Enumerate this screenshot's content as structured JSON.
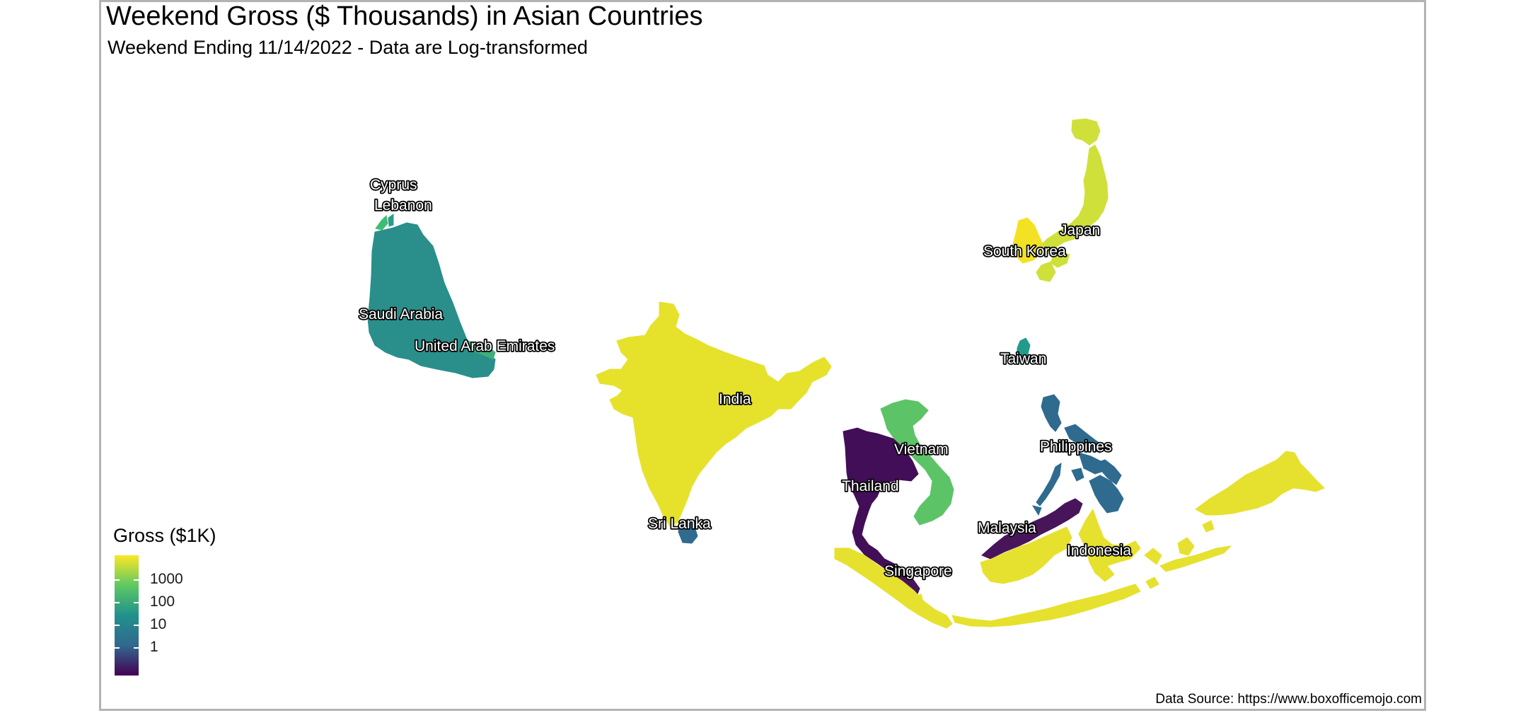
{
  "title": "Weekend Gross ($ Thousands) in Asian Countries",
  "subtitle": "Weekend Ending 11/14/2022 - Data are Log-transformed",
  "caption": "Data Source: https://www.boxofficemojo.com",
  "legend": {
    "title": "Gross ($1K)",
    "scale": "log10",
    "palette": [
      "#440154",
      "#31688e",
      "#21918c",
      "#5ec962",
      "#fde725"
    ],
    "ticks": [
      {
        "label": "1000",
        "value": 1000
      },
      {
        "label": "100",
        "value": 100
      },
      {
        "label": "10",
        "value": 10
      },
      {
        "label": "1",
        "value": 1
      }
    ]
  },
  "regions": [
    {
      "id": "cyprus",
      "label": "Cyprus",
      "color": "#3fbc73"
    },
    {
      "id": "lebanon",
      "label": "Lebanon",
      "color": "#2c9c8a"
    },
    {
      "id": "saudi-arabia",
      "label": "Saudi Arabia",
      "color": "#2a8f8a"
    },
    {
      "id": "uae",
      "label": "United Arab Emirates",
      "color": "#3fae7c"
    },
    {
      "id": "india",
      "label": "India",
      "color": "#e6e22b"
    },
    {
      "id": "sri-lanka",
      "label": "Sri Lanka",
      "color": "#2f6b8e"
    },
    {
      "id": "thailand",
      "label": "Thailand",
      "color": "#430e58"
    },
    {
      "id": "vietnam",
      "label": "Vietnam",
      "color": "#5cc466"
    },
    {
      "id": "malaysia",
      "label": "Malaysia",
      "color": "#48155b"
    },
    {
      "id": "singapore",
      "label": "Singapore",
      "color": "#e8e231"
    },
    {
      "id": "indonesia",
      "label": "Indonesia",
      "color": "#e6e12e"
    },
    {
      "id": "philippines",
      "label": "Philippines",
      "color": "#2e6b8e"
    },
    {
      "id": "taiwan",
      "label": "Taiwan",
      "color": "#239a8a"
    },
    {
      "id": "south-korea",
      "label": "South Korea",
      "color": "#f3e223"
    },
    {
      "id": "japan",
      "label": "Japan",
      "color": "#cfe03a"
    }
  ]
}
